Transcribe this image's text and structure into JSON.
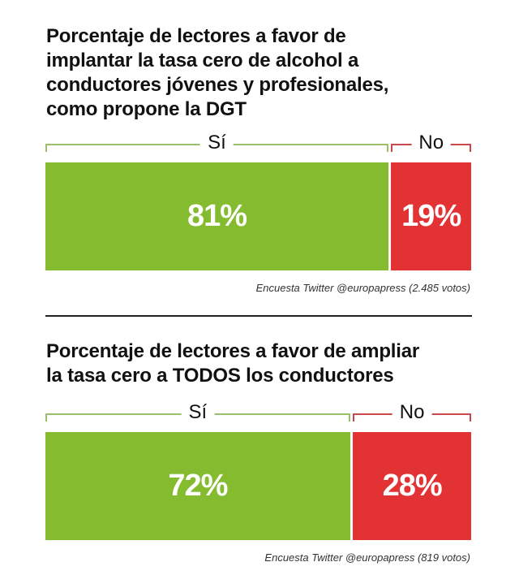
{
  "chart_data": [
    {
      "type": "bar",
      "stacked": true,
      "orientation": "horizontal",
      "title": "Porcentaje de lectores a favor de implantar la tasa cero de alcohol a conductores jóvenes y profesionales, como propone la DGT",
      "title_lines": [
        "Porcentaje de lectores a favor de",
        "implantar la tasa cero de alcohol a",
        "conductores jóvenes y profesionales,",
        "como propone la DGT"
      ],
      "categories": [
        "Sí",
        "No"
      ],
      "values": [
        81,
        19
      ],
      "labels": [
        "81%",
        "19%"
      ],
      "colors": [
        "#84bb2f",
        "#e23234"
      ],
      "caption": "Encuesta Twitter @europapress (2.485 votos)"
    },
    {
      "type": "bar",
      "stacked": true,
      "orientation": "horizontal",
      "title": "Porcentaje de lectores a favor de ampliar la tasa cero a TODOS los conductores",
      "title_lines": [
        "Porcentaje de lectores a favor de ampliar",
        "la tasa cero a TODOS los conductores"
      ],
      "categories": [
        "Sí",
        "No"
      ],
      "values": [
        72,
        28
      ],
      "labels": [
        "72%",
        "28%"
      ],
      "colors": [
        "#84bb2f",
        "#e23234"
      ],
      "caption": "Encuesta Twitter @europapress (819 votos)"
    }
  ]
}
